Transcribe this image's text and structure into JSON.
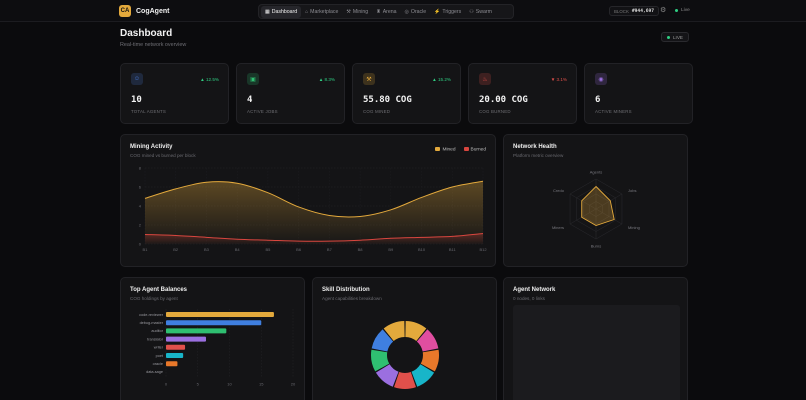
{
  "app": {
    "logo_mark": "CA",
    "name": "CogAgent"
  },
  "nav": {
    "items": [
      {
        "label": "Dashboard",
        "icon": "▦",
        "active": true
      },
      {
        "label": "Marketplace",
        "icon": "⌂"
      },
      {
        "label": "Mining",
        "icon": "⚒"
      },
      {
        "label": "Arena",
        "icon": "♜"
      },
      {
        "label": "Oracle",
        "icon": "◎"
      },
      {
        "label": "Triggers",
        "icon": "⚡"
      },
      {
        "label": "Swarm",
        "icon": "⚇"
      }
    ]
  },
  "status": {
    "block_label": "BLOCK",
    "block_value": "#944,697",
    "live_label": "Live"
  },
  "header": {
    "title": "Dashboard",
    "subtitle": "Real-time network overview",
    "badge": "LIVE"
  },
  "stats": [
    {
      "icon": "users-icon",
      "glyph": "☺",
      "delta": "▲ 12.5%",
      "value": "10",
      "label": "TOTAL AGENTS",
      "color": "#4a7bdc",
      "up": true
    },
    {
      "icon": "briefcase-icon",
      "glyph": "▣",
      "delta": "▲ 8.3%",
      "value": "4",
      "label": "ACTIVE JOBS",
      "color": "#2fbf71",
      "up": true
    },
    {
      "icon": "pickaxe-icon",
      "glyph": "⚒",
      "delta": "▲ 15.2%",
      "value": "55.80 COG",
      "label": "COG MINED",
      "color": "#e3a93c",
      "up": true
    },
    {
      "icon": "flame-icon",
      "glyph": "♨",
      "delta": "▼ 3.1%",
      "value": "20.00 COG",
      "label": "COG BURNED",
      "color": "#e0504b",
      "up": false
    },
    {
      "icon": "cpu-icon",
      "glyph": "◉",
      "delta": "",
      "value": "6",
      "label": "ACTIVE MINERS",
      "color": "#9b6fe0",
      "up": true
    }
  ],
  "colors": {
    "mined": "#e3a93c",
    "burned": "#d9463f",
    "up": "#2fcf83",
    "down": "#e0504b"
  },
  "mining": {
    "title": "Mining Activity",
    "subtitle": "COG mined vs burned per block",
    "legend": [
      "Mined",
      "Burned"
    ],
    "chart_data": {
      "type": "area",
      "categories": [
        "B1",
        "B2",
        "B3",
        "B4",
        "B5",
        "B6",
        "B7",
        "B8",
        "B9",
        "B10",
        "B11",
        "B12"
      ],
      "ylim": [
        0,
        8
      ],
      "yticks": [
        "0",
        "2",
        "4",
        "6",
        "8"
      ],
      "series": [
        {
          "name": "Mined",
          "values": [
            4.8,
            5.8,
            6.5,
            6.4,
            5.4,
            3.9,
            3.0,
            2.9,
            3.6,
            4.9,
            6.0,
            6.6
          ]
        },
        {
          "name": "Burned",
          "values": [
            1.0,
            0.9,
            0.7,
            0.5,
            0.4,
            0.3,
            0.3,
            0.4,
            0.6,
            0.7,
            0.8,
            1.1
          ]
        }
      ]
    }
  },
  "health": {
    "title": "Network Health",
    "subtitle": "Platform metric overview",
    "chart_data": {
      "type": "radar",
      "axes": [
        "Agents",
        "Jobs",
        "Mining",
        "Burns",
        "Miners",
        "Credo"
      ],
      "values": [
        7.5,
        5.5,
        7.0,
        5.5,
        5.5,
        5.5
      ],
      "max": 10
    }
  },
  "balances": {
    "title": "Top Agent Balances",
    "subtitle": "COG holdings by agent",
    "chart_data": {
      "type": "bar",
      "categories": [
        "code-reviewer",
        "debug-master",
        "auditor",
        "translator",
        "writer",
        "poet",
        "oracle",
        "data-sage"
      ],
      "values": [
        17,
        15,
        9.5,
        6.3,
        3.0,
        2.7,
        1.8,
        0
      ],
      "colors": [
        "#e3a93c",
        "#3f7fe0",
        "#2fbf71",
        "#9b6fe0",
        "#e0504b",
        "#18b5c9",
        "#e8782a",
        "#777777"
      ],
      "xticks": [
        "0",
        "5",
        "10",
        "15",
        "20"
      ],
      "xlim": [
        0,
        20
      ]
    }
  },
  "skills": {
    "title": "Skill Distribution",
    "subtitle": "Agent capabilities breakdown",
    "chart_data": {
      "type": "pie",
      "values": [
        1,
        1,
        1,
        1,
        1,
        1,
        1,
        1,
        1
      ],
      "colors": [
        "#e3a93c",
        "#e04ea0",
        "#e8782a",
        "#18b5c9",
        "#e0504b",
        "#9b6fe0",
        "#2fbf71",
        "#3f7fe0",
        "#e3a93c"
      ]
    }
  },
  "network": {
    "title": "Agent Network",
    "subtitle": "0 nodes, 0 links"
  }
}
